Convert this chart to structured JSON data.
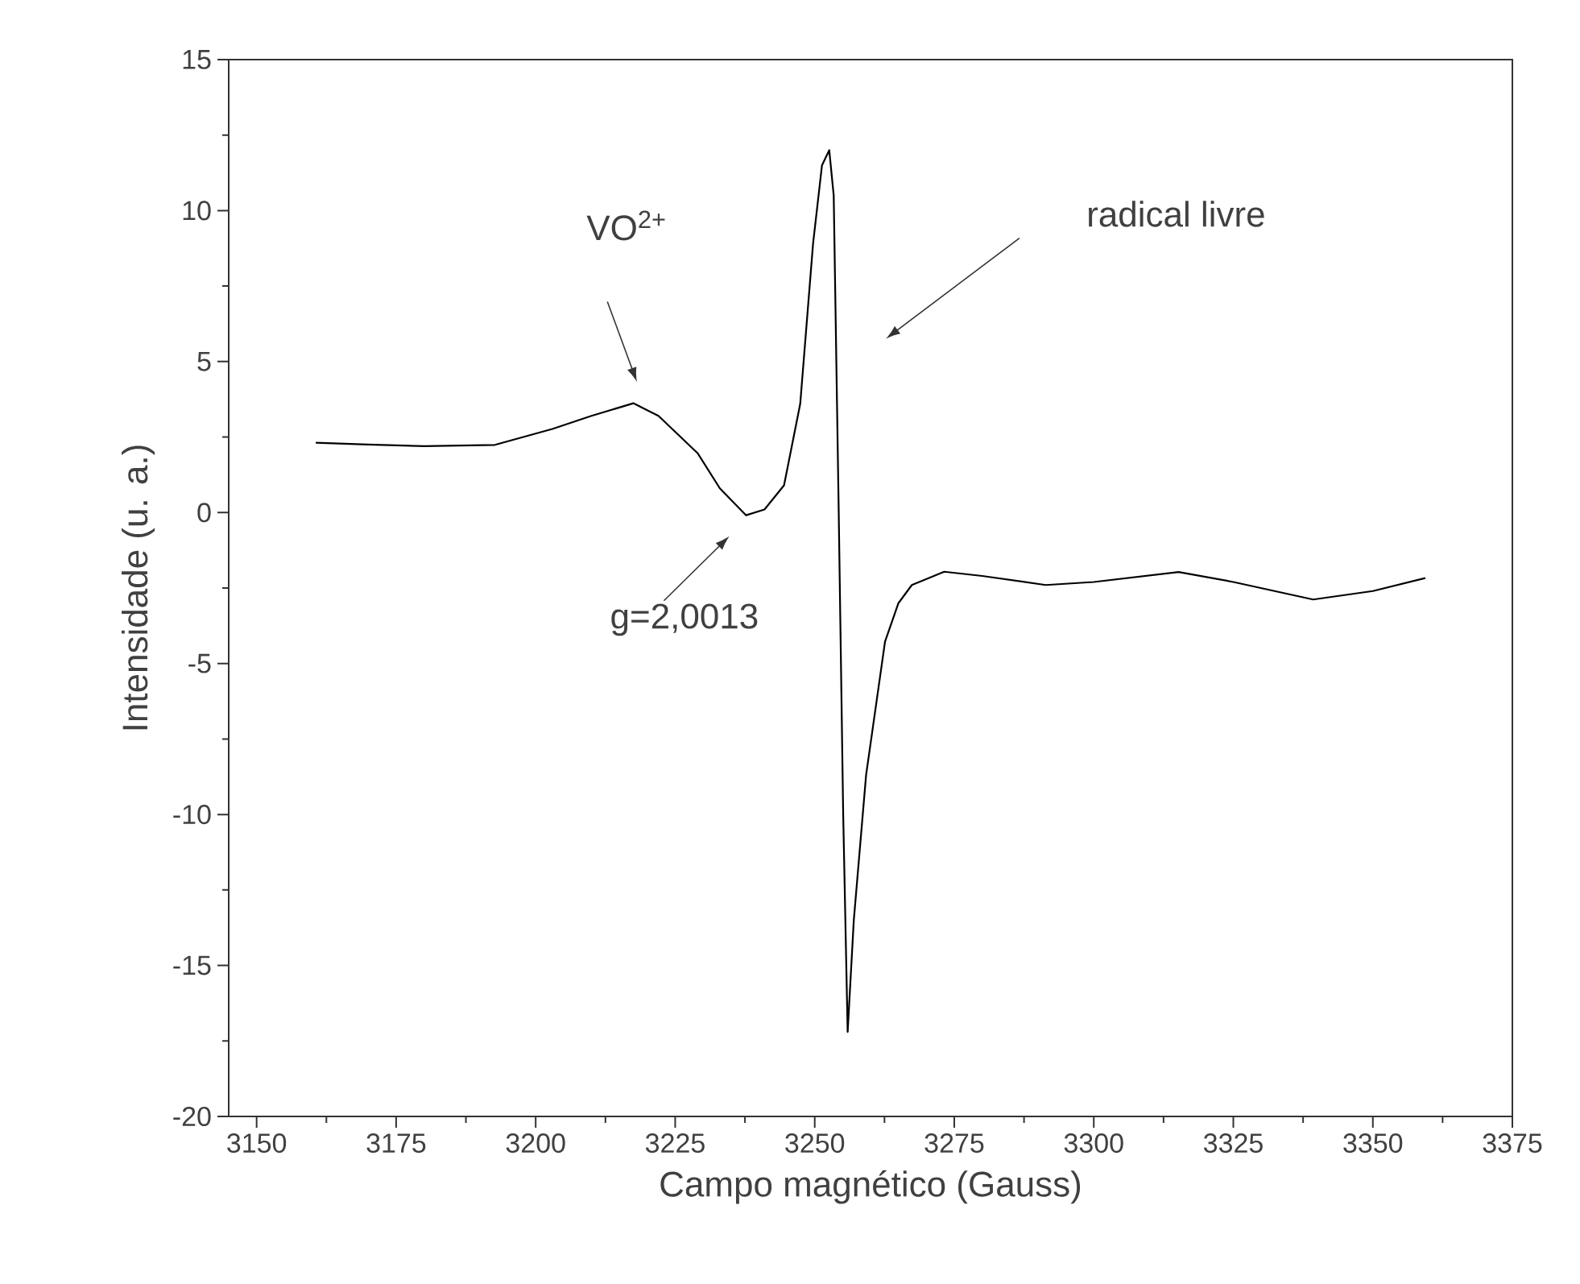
{
  "chart_data": {
    "type": "line",
    "xlabel": "Campo magnético (Gauss)",
    "ylabel": "Intensidade (u. a.)",
    "x": [
      3160.6,
      3170,
      3180,
      3192.7,
      3203,
      3210,
      3217.5,
      3222,
      3229,
      3233,
      3237.7,
      3241,
      3244.5,
      3247.4,
      3249.7,
      3251.3,
      3252.6,
      3253.4,
      3254.3,
      3255.1,
      3255.9,
      3257,
      3259.2,
      3262.6,
      3265,
      3267.4,
      3273.2,
      3280,
      3291.4,
      3300,
      3315.2,
      3325,
      3339.3,
      3350,
      3359.4
    ],
    "values": [
      2.31,
      2.25,
      2.2,
      2.24,
      2.77,
      3.2,
      3.62,
      3.2,
      1.97,
      0.8,
      -0.09,
      0.1,
      0.9,
      3.6,
      8.9,
      11.5,
      12.0,
      10.5,
      0,
      -10,
      -17.2,
      -13.5,
      -8.7,
      -4.27,
      -3.0,
      -2.4,
      -1.96,
      -2.1,
      -2.4,
      -2.3,
      -1.97,
      -2.3,
      -2.88,
      -2.6,
      -2.17
    ],
    "color": "#000000",
    "marker": "none",
    "line_style": "solid",
    "xlim": [
      3145,
      3375
    ],
    "ylim": [
      -20,
      15
    ],
    "xticks": [
      3150,
      3175,
      3200,
      3225,
      3250,
      3275,
      3300,
      3325,
      3350,
      3375
    ],
    "yticks": [
      -20,
      -15,
      -10,
      -5,
      0,
      5,
      10,
      15
    ],
    "annotations": [
      "VO$^{2+}$",
      "radical livre",
      "g=2,0013"
    ]
  }
}
